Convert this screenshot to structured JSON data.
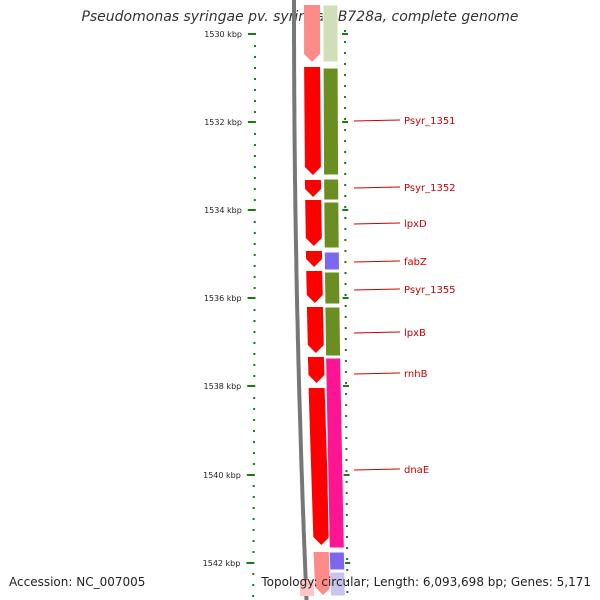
{
  "title": "Pseudomonas syringae pv. syringae B728a, complete genome",
  "footer": {
    "accession": "Accession: NC_007005",
    "summary": "Topology: circular; Length: 6,093,698 bp; Genes: 5,171"
  },
  "ruler": {
    "labels": [
      "1530 kbp",
      "1532 kbp",
      "1534 kbp",
      "1536 kbp",
      "1538 kbp",
      "1540 kbp",
      "1542 kbp"
    ],
    "tick_color": "#1a7a1a"
  },
  "colors": {
    "backbone": "#777777",
    "cds_strand": "#ff0000",
    "cds_forward": "#6b8e23",
    "cds_rrna_like": "#ff1493",
    "cds_other": "#7b68ee",
    "label_line": "#cc0000",
    "label_text": "#cc0000"
  },
  "features": [
    {
      "name": "Psyr_1351"
    },
    {
      "name": "Psyr_1352"
    },
    {
      "name": "lpxD"
    },
    {
      "name": "fabZ"
    },
    {
      "name": "Psyr_1355"
    },
    {
      "name": "lpxB"
    },
    {
      "name": "rnhB"
    },
    {
      "name": "dnaE"
    }
  ]
}
